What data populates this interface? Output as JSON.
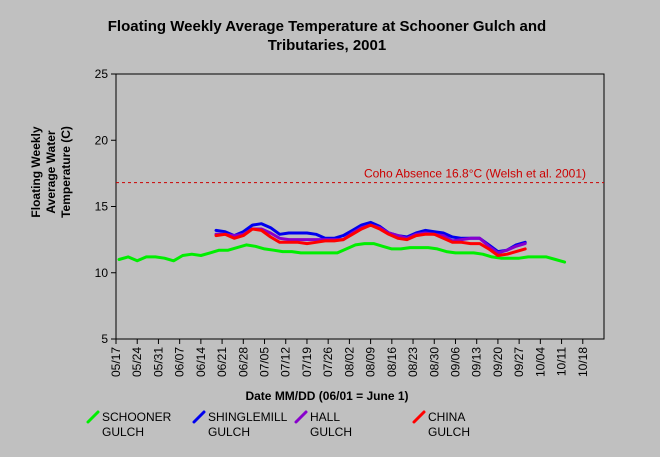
{
  "chart_data": {
    "type": "line",
    "title": [
      "Floating Weekly Average Temperature at  Schooner Gulch and",
      "Tributaries, 2001"
    ],
    "xlabel": "Date MM/DD (06/01 = June 1)",
    "ylabel": [
      "Floating Weekly",
      "Average Water",
      "Temperature (C)"
    ],
    "x_ticks": [
      "05/17",
      "05/24",
      "05/31",
      "06/07",
      "06/14",
      "06/21",
      "06/28",
      "07/05",
      "07/12",
      "07/19",
      "07/26",
      "08/02",
      "08/09",
      "08/16",
      "08/23",
      "08/30",
      "09/06",
      "09/13",
      "09/20",
      "09/27",
      "10/04",
      "10/11",
      "10/18"
    ],
    "xlim": [
      "2001-05-17",
      "2001-10-25"
    ],
    "ylim": [
      5,
      25
    ],
    "y_ticks": [
      5,
      10,
      15,
      20,
      25
    ],
    "grid": false,
    "legend_position": "bottom",
    "reference_line": {
      "y": 16.8,
      "label": "Coho Absence 16.8°C (Welsh et al. 2001)",
      "color": "#cc0000"
    },
    "series": [
      {
        "name": "SCHOONER GULCH",
        "color": "#00ee00",
        "x": [
          "2001-05-18",
          "2001-05-21",
          "2001-05-24",
          "2001-05-27",
          "2001-05-30",
          "2001-06-02",
          "2001-06-05",
          "2001-06-08",
          "2001-06-11",
          "2001-06-14",
          "2001-06-17",
          "2001-06-20",
          "2001-06-23",
          "2001-06-26",
          "2001-06-29",
          "2001-07-02",
          "2001-07-05",
          "2001-07-08",
          "2001-07-11",
          "2001-07-14",
          "2001-07-17",
          "2001-07-20",
          "2001-07-23",
          "2001-07-26",
          "2001-07-29",
          "2001-08-01",
          "2001-08-04",
          "2001-08-07",
          "2001-08-10",
          "2001-08-13",
          "2001-08-16",
          "2001-08-19",
          "2001-08-22",
          "2001-08-25",
          "2001-08-28",
          "2001-08-31",
          "2001-09-03",
          "2001-09-06",
          "2001-09-09",
          "2001-09-12",
          "2001-09-15",
          "2001-09-18",
          "2001-09-21",
          "2001-09-24",
          "2001-09-27",
          "2001-09-30",
          "2001-10-03",
          "2001-10-06",
          "2001-10-09",
          "2001-10-12"
        ],
        "values": [
          11.0,
          11.2,
          10.9,
          11.2,
          11.2,
          11.1,
          10.9,
          11.3,
          11.4,
          11.3,
          11.5,
          11.7,
          11.7,
          11.9,
          12.1,
          12.0,
          11.8,
          11.7,
          11.6,
          11.6,
          11.5,
          11.5,
          11.5,
          11.5,
          11.5,
          11.8,
          12.1,
          12.2,
          12.2,
          12.0,
          11.8,
          11.8,
          11.9,
          11.9,
          11.9,
          11.8,
          11.6,
          11.5,
          11.5,
          11.5,
          11.4,
          11.2,
          11.1,
          11.1,
          11.1,
          11.2,
          11.2,
          11.2,
          11.0,
          10.8
        ]
      },
      {
        "name": "SHINGLEMILL GULCH",
        "color": "#0000ee",
        "x": [
          "2001-06-19",
          "2001-06-22",
          "2001-06-25",
          "2001-06-28",
          "2001-07-01",
          "2001-07-04",
          "2001-07-07",
          "2001-07-10",
          "2001-07-13",
          "2001-07-16",
          "2001-07-19",
          "2001-07-22",
          "2001-07-25",
          "2001-07-28",
          "2001-07-31",
          "2001-08-03",
          "2001-08-06",
          "2001-08-09",
          "2001-08-12",
          "2001-08-15",
          "2001-08-18",
          "2001-08-21",
          "2001-08-24",
          "2001-08-27",
          "2001-08-30",
          "2001-09-02",
          "2001-09-05",
          "2001-09-08",
          "2001-09-11",
          "2001-09-14",
          "2001-09-17",
          "2001-09-20",
          "2001-09-23",
          "2001-09-26",
          "2001-09-29"
        ],
        "values": [
          13.2,
          13.1,
          12.8,
          13.1,
          13.6,
          13.7,
          13.4,
          12.9,
          13.0,
          13.0,
          13.0,
          12.9,
          12.6,
          12.6,
          12.8,
          13.2,
          13.6,
          13.8,
          13.5,
          13.0,
          12.8,
          12.7,
          13.0,
          13.2,
          13.1,
          13.0,
          12.7,
          12.6,
          12.6,
          12.6,
          12.1,
          11.6,
          11.7,
          12.1,
          12.3
        ]
      },
      {
        "name": "HALL GULCH",
        "color": "#8800cc",
        "x": [
          "2001-06-19",
          "2001-06-22",
          "2001-06-25",
          "2001-06-28",
          "2001-07-01",
          "2001-07-04",
          "2001-07-07",
          "2001-07-10",
          "2001-07-13",
          "2001-07-16",
          "2001-07-19",
          "2001-07-22",
          "2001-07-25",
          "2001-07-28",
          "2001-07-31",
          "2001-08-03",
          "2001-08-06",
          "2001-08-09",
          "2001-08-12",
          "2001-08-15",
          "2001-08-18",
          "2001-08-21",
          "2001-08-24",
          "2001-08-27",
          "2001-08-30",
          "2001-09-02",
          "2001-09-05",
          "2001-09-08",
          "2001-09-11",
          "2001-09-14",
          "2001-09-17",
          "2001-09-20",
          "2001-09-23",
          "2001-09-26",
          "2001-09-29"
        ],
        "values": [
          12.9,
          12.9,
          12.8,
          12.9,
          13.3,
          13.3,
          13.0,
          12.6,
          12.5,
          12.5,
          12.5,
          12.5,
          12.5,
          12.5,
          12.5,
          13.0,
          13.4,
          13.6,
          13.4,
          13.0,
          12.8,
          12.6,
          12.9,
          13.0,
          12.9,
          12.8,
          12.4,
          12.5,
          12.6,
          12.6,
          12.0,
          11.5,
          11.7,
          12.0,
          12.2
        ]
      },
      {
        "name": "CHINA GULCH",
        "color": "#ff0000",
        "x": [
          "2001-06-19",
          "2001-06-22",
          "2001-06-25",
          "2001-06-28",
          "2001-07-01",
          "2001-07-04",
          "2001-07-07",
          "2001-07-10",
          "2001-07-13",
          "2001-07-16",
          "2001-07-19",
          "2001-07-22",
          "2001-07-25",
          "2001-07-28",
          "2001-07-31",
          "2001-08-03",
          "2001-08-06",
          "2001-08-09",
          "2001-08-12",
          "2001-08-15",
          "2001-08-18",
          "2001-08-21",
          "2001-08-24",
          "2001-08-27",
          "2001-08-30",
          "2001-09-02",
          "2001-09-05",
          "2001-09-08",
          "2001-09-11",
          "2001-09-14",
          "2001-09-17",
          "2001-09-20",
          "2001-09-23",
          "2001-09-26",
          "2001-09-29"
        ],
        "values": [
          12.8,
          12.9,
          12.6,
          12.8,
          13.3,
          13.2,
          12.7,
          12.3,
          12.3,
          12.3,
          12.2,
          12.3,
          12.4,
          12.4,
          12.5,
          12.9,
          13.3,
          13.6,
          13.3,
          12.9,
          12.6,
          12.5,
          12.8,
          12.9,
          12.9,
          12.6,
          12.3,
          12.3,
          12.2,
          12.2,
          11.8,
          11.3,
          11.4,
          11.6,
          11.8
        ]
      }
    ]
  }
}
